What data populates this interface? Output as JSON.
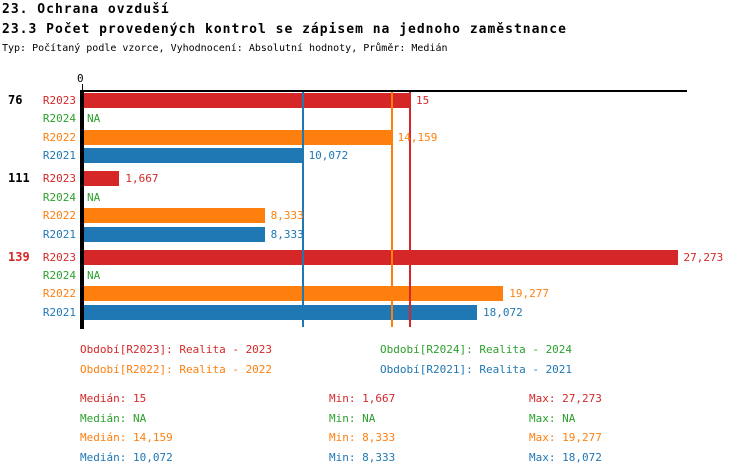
{
  "header": {
    "title_line1": "23. Ochrana ovzduší",
    "title_line2": "23.3 Počet provedených kontrol se zápisem na jednoho zaměstnance",
    "subtitle": "Typ: Počítaný podle vzorce, Vyhodnocení: Absolutní hodnoty, Průměr: Medián"
  },
  "chart_data": {
    "type": "bar",
    "orientation": "horizontal",
    "title": "23.3 Počet provedených kontrol se zápisem na jednoho zaměstnance",
    "x_axis": {
      "zero_label": "0",
      "min": 0,
      "max_shown": 27.7,
      "grid": false
    },
    "value_format": "czech-decimal-comma",
    "series": [
      {
        "id": "R2023",
        "name": "Realita - 2023",
        "color": "#d62728"
      },
      {
        "id": "R2024",
        "name": "Realita - 2024",
        "color": "#2ca02c"
      },
      {
        "id": "R2022",
        "name": "Realita - 2022",
        "color": "#ff7f0e"
      },
      {
        "id": "R2021",
        "name": "Realita - 2021",
        "color": "#1f77b4"
      }
    ],
    "groups": [
      {
        "label": "76",
        "label_color": "#000000",
        "bars": [
          {
            "series": "R2023",
            "value": 15,
            "display": "15"
          },
          {
            "series": "R2024",
            "value": null,
            "display": "NA"
          },
          {
            "series": "R2022",
            "value": 14.159,
            "display": "14,159"
          },
          {
            "series": "R2021",
            "value": 10.072,
            "display": "10,072"
          }
        ]
      },
      {
        "label": "111",
        "label_color": "#000000",
        "bars": [
          {
            "series": "R2023",
            "value": 1.667,
            "display": "1,667"
          },
          {
            "series": "R2024",
            "value": null,
            "display": "NA"
          },
          {
            "series": "R2022",
            "value": 8.333,
            "display": "8,333"
          },
          {
            "series": "R2021",
            "value": 8.333,
            "display": "8,333"
          }
        ]
      },
      {
        "label": "139",
        "label_color": "#d62728",
        "bars": [
          {
            "series": "R2023",
            "value": 27.273,
            "display": "27,273"
          },
          {
            "series": "R2024",
            "value": null,
            "display": "NA"
          },
          {
            "series": "R2022",
            "value": 19.277,
            "display": "19,277"
          },
          {
            "series": "R2021",
            "value": 18.072,
            "display": "18,072"
          }
        ]
      }
    ],
    "median_lines": [
      {
        "series": "R2023",
        "value": 15
      },
      {
        "series": "R2022",
        "value": 14.159
      },
      {
        "series": "R2021",
        "value": 10.072
      }
    ]
  },
  "legend": {
    "items": [
      {
        "label": "Období[R2023]: Realita - 2023",
        "series": "R2023",
        "color": "#d62728",
        "col": 0,
        "row": 0
      },
      {
        "label": "Období[R2024]: Realita - 2024",
        "series": "R2024",
        "color": "#2ca02c",
        "col": 1,
        "row": 0
      },
      {
        "label": "Období[R2022]: Realita - 2022",
        "series": "R2022",
        "color": "#ff7f0e",
        "col": 0,
        "row": 1
      },
      {
        "label": "Období[R2021]: Realita - 2021",
        "series": "R2021",
        "color": "#1f77b4",
        "col": 1,
        "row": 1
      }
    ]
  },
  "stats": {
    "rows": [
      {
        "series": "R2023",
        "color": "#d62728",
        "median": "Medián: 15",
        "min": "Min: 1,667",
        "max": "Max: 27,273"
      },
      {
        "series": "R2024",
        "color": "#2ca02c",
        "median": "Medián: NA",
        "min": "Min: NA",
        "max": "Max: NA"
      },
      {
        "series": "R2022",
        "color": "#ff7f0e",
        "median": "Medián: 14,159",
        "min": "Min: 8,333",
        "max": "Max: 19,277"
      },
      {
        "series": "R2021",
        "color": "#1f77b4",
        "median": "Medián: 10,072",
        "min": "Min: 8,333",
        "max": "Max: 18,072"
      }
    ]
  }
}
